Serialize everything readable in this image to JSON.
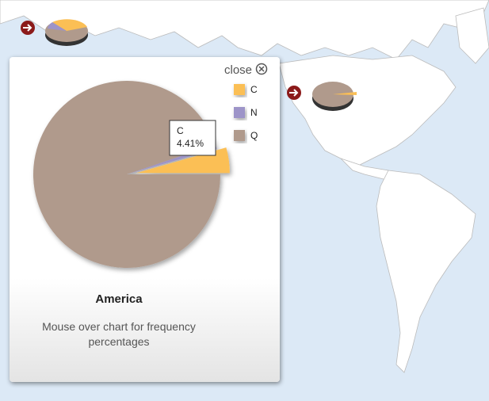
{
  "popup": {
    "close": "close",
    "title": "America",
    "caption": "Mouse over chart for frequency percentages"
  },
  "chart_data": {
    "type": "pie",
    "categories": [
      "C",
      "N",
      "Q"
    ],
    "values": [
      4.41,
      0.8,
      94.79
    ],
    "value_labels": [
      "4.41%",
      null,
      null
    ],
    "colors": [
      "#fbbf55",
      "#9d94c8",
      "#b09a8c"
    ]
  }
}
